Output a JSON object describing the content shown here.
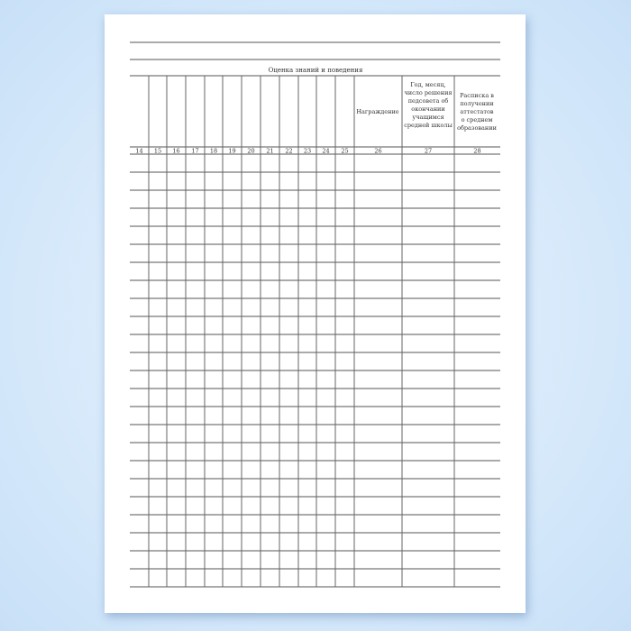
{
  "form": {
    "section_title": "Оценка знаний и поведения",
    "headers": {
      "award": "Награждение",
      "decision": [
        "Год, месяц,",
        "число решения",
        "педсовета об",
        "окончании",
        "учащимся",
        "средней школы"
      ],
      "receipt": [
        "Расписка в",
        "получении",
        "аттестатов",
        "о среднем",
        "образовании"
      ]
    },
    "column_numbers": [
      "14",
      "15",
      "16",
      "17",
      "18",
      "19",
      "20",
      "21",
      "22",
      "23",
      "24",
      "25",
      "26",
      "27",
      "28"
    ],
    "blank_rows": 24
  }
}
